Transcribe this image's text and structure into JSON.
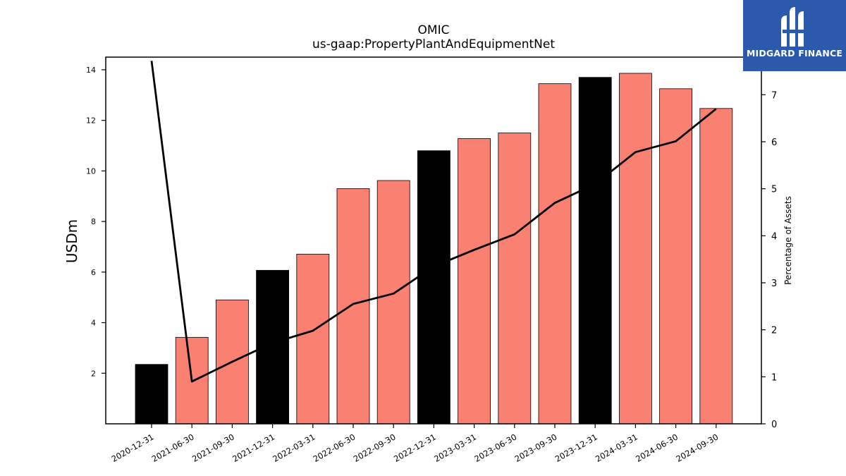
{
  "chart_data": {
    "type": "bar",
    "title": "OMIC",
    "subtitle": "us-gaap:PropertyPlantAndEquipmentNet",
    "ylabel": "USDm",
    "y2label": "Percentage of Assets",
    "ylim": [
      0,
      14.5
    ],
    "y2lim": [
      0,
      7.8
    ],
    "yticks": [
      2,
      4,
      6,
      8,
      10,
      12,
      14
    ],
    "y2ticks": [
      0,
      1,
      2,
      3,
      4,
      5,
      6,
      7
    ],
    "categories": [
      "2020-12-31",
      "2021-06-30",
      "2021-09-30",
      "2021-12-31",
      "2022-03-31",
      "2022-06-30",
      "2022-09-30",
      "2022-12-31",
      "2023-03-31",
      "2023-06-30",
      "2023-09-30",
      "2023-12-31",
      "2024-03-31",
      "2024-06-30",
      "2024-09-30"
    ],
    "series": [
      {
        "type": "bar",
        "axis": "left",
        "values": [
          2.35,
          3.42,
          4.9,
          6.07,
          6.71,
          9.3,
          9.62,
          10.8,
          11.28,
          11.5,
          13.45,
          13.7,
          13.86,
          13.25,
          12.47
        ],
        "colors": [
          "#000000",
          "#fa8072",
          "#fa8072",
          "#000000",
          "#fa8072",
          "#fa8072",
          "#fa8072",
          "#000000",
          "#fa8072",
          "#fa8072",
          "#fa8072",
          "#000000",
          "#fa8072",
          "#fa8072",
          "#fa8072"
        ]
      },
      {
        "type": "line",
        "axis": "right",
        "color": "#000000",
        "values": [
          7.72,
          0.9,
          1.32,
          1.72,
          1.98,
          2.55,
          2.77,
          3.35,
          3.7,
          4.03,
          4.7,
          5.1,
          5.78,
          6.01,
          6.7
        ]
      }
    ],
    "grid": false,
    "legend": "none"
  },
  "logo": {
    "text": "MIDGARD FINANCE",
    "background": "#2b5aad"
  }
}
